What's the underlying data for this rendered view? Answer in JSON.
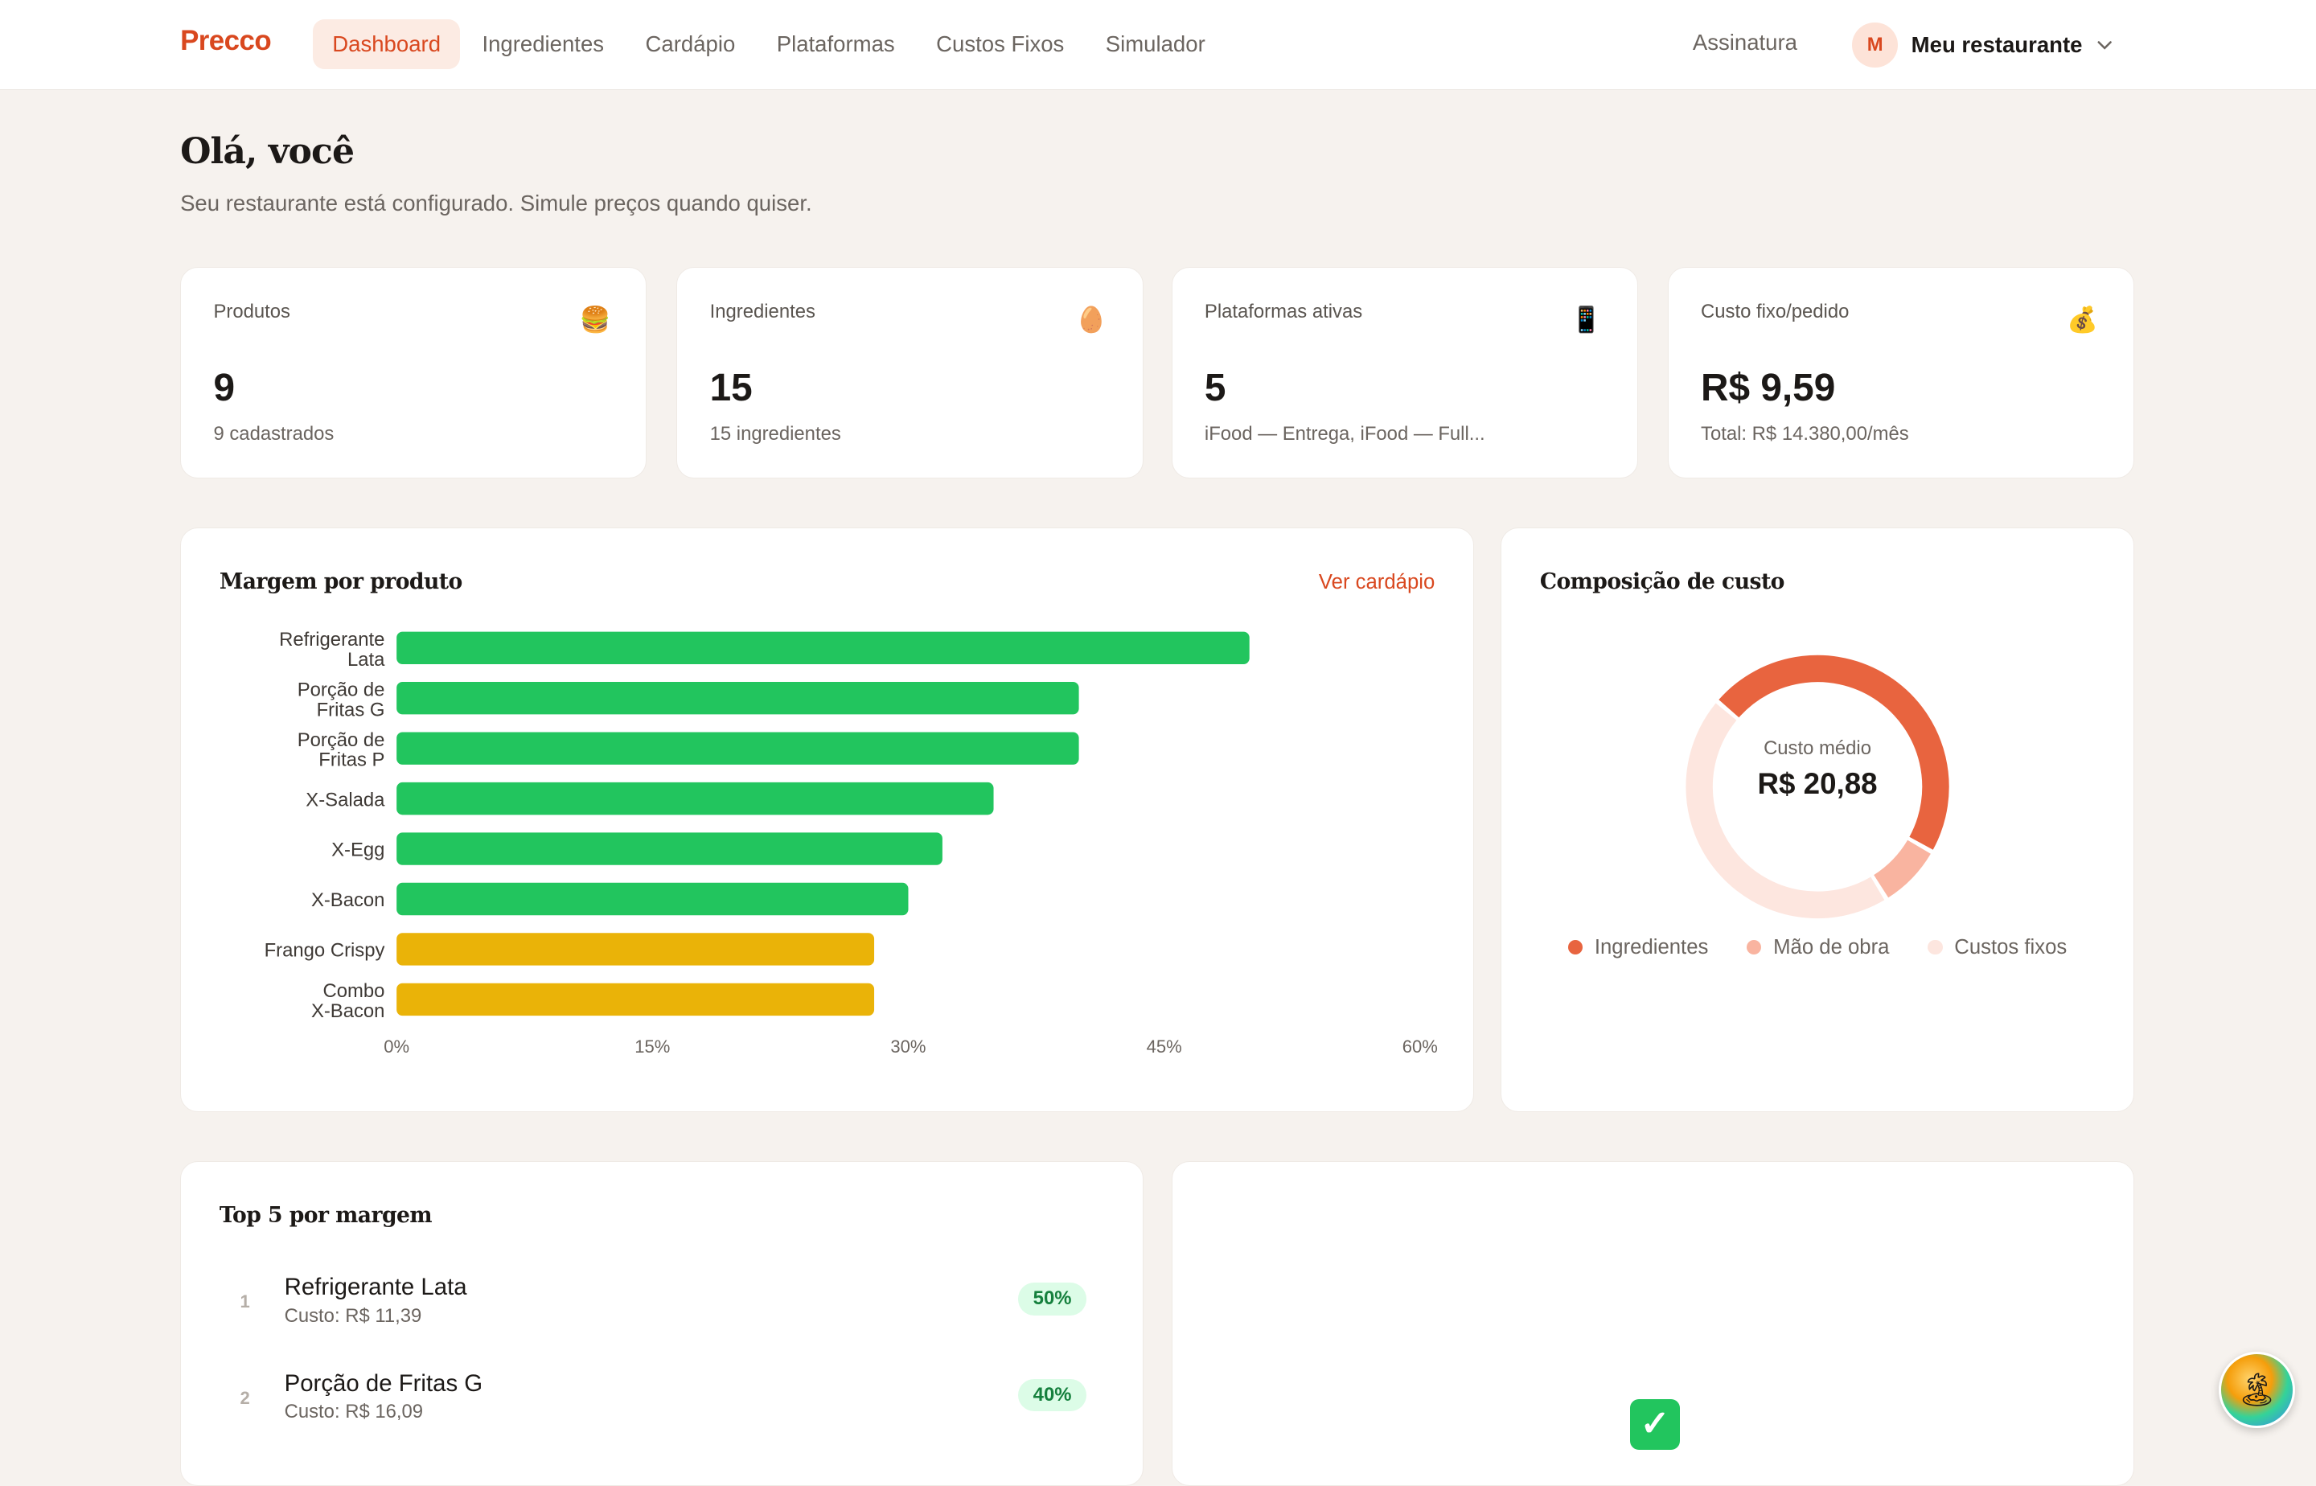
{
  "brand": "Precco",
  "nav": {
    "items": [
      {
        "label": "Dashboard",
        "active": true
      },
      {
        "label": "Ingredientes",
        "active": false
      },
      {
        "label": "Cardápio",
        "active": false
      },
      {
        "label": "Plataformas",
        "active": false
      },
      {
        "label": "Custos Fixos",
        "active": false
      },
      {
        "label": "Simulador",
        "active": false
      }
    ],
    "subscription": "Assinatura",
    "account": {
      "initial": "M",
      "name": "Meu restaurante"
    }
  },
  "header": {
    "greeting": "Olá, você",
    "subtitle": "Seu restaurante está configurado. Simule preços quando quiser."
  },
  "stats": [
    {
      "label": "Produtos",
      "icon": "burger-icon",
      "glyph": "🍔",
      "value": "9",
      "note": "9 cadastrados"
    },
    {
      "label": "Ingredientes",
      "icon": "egg-icon",
      "glyph": "🥚",
      "value": "15",
      "note": "15 ingredientes"
    },
    {
      "label": "Plataformas ativas",
      "icon": "phone-icon",
      "glyph": "📱",
      "value": "5",
      "note": "iFood — Entrega, iFood — Full..."
    },
    {
      "label": "Custo fixo/pedido",
      "icon": "money-bag-icon",
      "glyph": "💰",
      "value": "R$ 9,59",
      "note": "Total: R$ 14.380,00/mês"
    }
  ],
  "margin_card": {
    "title": "Margem por produto",
    "link": "Ver cardápio"
  },
  "cost_card": {
    "title": "Composição de custo",
    "center_label": "Custo médio",
    "center_value": "R$ 20,88"
  },
  "top5": {
    "title": "Top 5 por margem",
    "items": [
      {
        "rank": "1",
        "name": "Refrigerante Lata",
        "cost": "Custo: R$ 11,39",
        "pct": "50%"
      },
      {
        "rank": "2",
        "name": "Porção de Fritas G",
        "cost": "Custo: R$ 16,09",
        "pct": "40%"
      }
    ]
  },
  "status_card": {
    "emoji": "✅"
  },
  "fab": {
    "icon": "island-avatar-icon",
    "glyph": "🏝"
  },
  "colors": {
    "accent": "#d9481f",
    "good": "#22c55e",
    "warn": "#eab308",
    "ingredients": "#e8643f",
    "labor": "#f9b4a0",
    "fixed": "#fde6df"
  },
  "chart_data": [
    {
      "type": "bar",
      "orientation": "horizontal",
      "categories": [
        [
          "Refrigerante",
          "Lata"
        ],
        [
          "Porção de",
          "Fritas G"
        ],
        [
          "Porção de",
          "Fritas P"
        ],
        [
          "X-Salada"
        ],
        [
          "X-Egg"
        ],
        [
          "X-Bacon"
        ],
        [
          "Frango Crispy"
        ],
        [
          "Combo",
          "X-Bacon"
        ]
      ],
      "values": [
        50,
        40,
        40,
        35,
        32,
        30,
        28,
        28
      ],
      "bar_colors": [
        "#22c55e",
        "#22c55e",
        "#22c55e",
        "#22c55e",
        "#22c55e",
        "#22c55e",
        "#eab308",
        "#eab308"
      ],
      "xlim": [
        0,
        62
      ],
      "x_ticks": [
        0,
        15,
        30,
        45,
        60
      ],
      "x_tick_labels": [
        "0%",
        "15%",
        "30%",
        "45%",
        "60%"
      ],
      "grid": false
    },
    {
      "type": "pie",
      "variant": "donut",
      "slices": [
        {
          "label": "Ingredientes",
          "value": 47,
          "color": "#e8643f"
        },
        {
          "label": "Mão de obra",
          "value": 8,
          "color": "#f9b4a0"
        },
        {
          "label": "Custos fixos",
          "value": 45,
          "color": "#fde6df"
        }
      ],
      "legend": "bottom"
    }
  ]
}
